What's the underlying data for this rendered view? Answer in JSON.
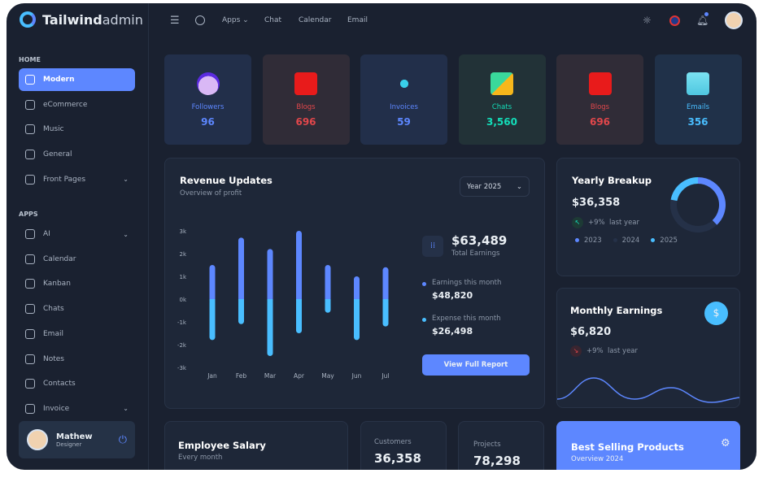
{
  "brand": {
    "bold": "Tailwind",
    "light": "admin"
  },
  "header": {
    "apps": "Apps",
    "chat": "Chat",
    "calendar": "Calendar",
    "email": "Email"
  },
  "sidebar": {
    "home_label": "HOME",
    "apps_label": "APPS",
    "home": [
      {
        "label": "Modern",
        "active": true
      },
      {
        "label": "eCommerce"
      },
      {
        "label": "Music"
      },
      {
        "label": "General"
      },
      {
        "label": "Front Pages",
        "chevron": true
      }
    ],
    "apps": [
      {
        "label": "AI",
        "chevron": true
      },
      {
        "label": "Calendar"
      },
      {
        "label": "Kanban"
      },
      {
        "label": "Chats"
      },
      {
        "label": "Email"
      },
      {
        "label": "Notes"
      },
      {
        "label": "Contacts"
      },
      {
        "label": "Invoice",
        "chevron": true
      }
    ],
    "user": {
      "name": "Mathew",
      "role": "Designer"
    }
  },
  "stats": [
    {
      "label": "Followers",
      "value": "96",
      "color": "#5d87ff",
      "bg": "#222f4a",
      "icon": "user-icon"
    },
    {
      "label": "Blogs",
      "value": "696",
      "color": "#e2474b",
      "bg": "#302c37",
      "icon": "bookmark-star-icon"
    },
    {
      "label": "Invoices",
      "value": "59",
      "color": "#5d87ff",
      "bg": "#222f4a",
      "icon": "share-nodes-icon"
    },
    {
      "label": "Chats",
      "value": "3,560",
      "color": "#13deb9",
      "bg": "#223237",
      "icon": "chat-bubbles-icon"
    },
    {
      "label": "Blogs",
      "value": "696",
      "color": "#e2474b",
      "bg": "#302c37",
      "icon": "bookmark-star-icon"
    },
    {
      "label": "Emails",
      "value": "356",
      "color": "#49beff",
      "bg": "#203149",
      "icon": "mailbox-icon"
    }
  ],
  "revenue": {
    "title": "Revenue Updates",
    "subtitle": "Overview of profit",
    "year_select": "Year 2025",
    "total": "$63,489",
    "total_label": "Total Earnings",
    "earn_label": "Earnings this month",
    "earn": "$48,820",
    "exp_label": "Expense this month",
    "exp": "$26,498",
    "button": "View Full Report"
  },
  "chart_data": {
    "type": "bar",
    "categories": [
      "Jan",
      "Feb",
      "Mar",
      "Apr",
      "May",
      "Jun",
      "Jul"
    ],
    "yticks": [
      "3k",
      "2k",
      "1k",
      "0k",
      "-1k",
      "-2k",
      "-3k"
    ],
    "ylim": [
      -3,
      3
    ],
    "series": [
      {
        "values": [
          1.5,
          2.7,
          2.2,
          3.0,
          1.5,
          1.0,
          1.4
        ],
        "color": "#5d87ff"
      },
      {
        "values": [
          -1.8,
          -1.1,
          -2.5,
          -1.5,
          -0.6,
          -1.8,
          -1.2
        ],
        "color": "#49beff"
      }
    ]
  },
  "yearly": {
    "title": "Yearly Breakup",
    "value": "$36,358",
    "change": "+9%",
    "period": "last year",
    "legend": [
      {
        "label": "2023",
        "color": "#5d87ff",
        "share": 38
      },
      {
        "label": "2024",
        "color": "#253148",
        "share": 40
      },
      {
        "label": "2025",
        "color": "#49beff",
        "share": 22
      }
    ]
  },
  "monthly": {
    "title": "Monthly Earnings",
    "value": "$6,820",
    "change": "+9%",
    "period": "last year"
  },
  "salary": {
    "title": "Employee Salary",
    "subtitle": "Every month"
  },
  "customers": {
    "label": "Customers",
    "value": "36,358"
  },
  "projects": {
    "label": "Projects",
    "value": "78,298"
  },
  "best": {
    "title": "Best Selling Products",
    "subtitle": "Overview 2024"
  }
}
